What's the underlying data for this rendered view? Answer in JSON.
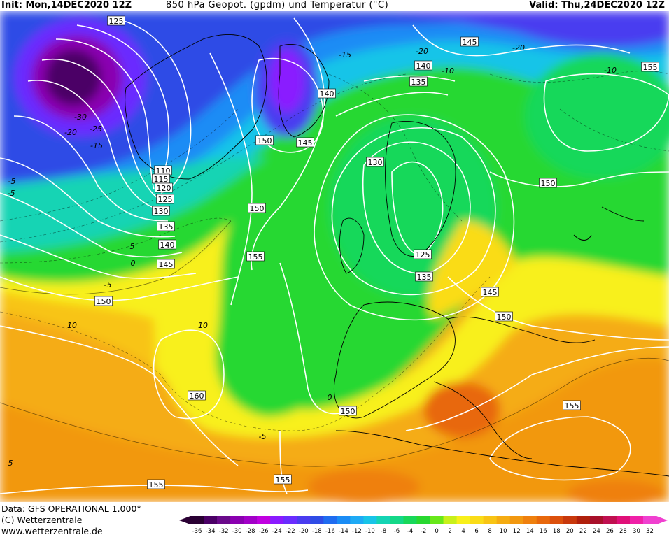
{
  "header": {
    "init": "Init: Mon,14DEC2020 12Z",
    "title": "850 hPa Geopot. (gpdm) und Temperatur (°C)",
    "valid": "Valid: Thu,24DEC2020 12Z"
  },
  "footer": {
    "line1": "Data: GFS OPERATIONAL 1.000°",
    "line2": "(C) Wetterzentrale",
    "line3": "www.wetterzentrale.de"
  },
  "geopotential_labels": [
    "125",
    "145",
    "140",
    "135",
    "140",
    "150",
    "145",
    "110",
    "115",
    "120",
    "125",
    "130",
    "135",
    "140",
    "145",
    "150",
    "150",
    "155",
    "130",
    "150",
    "125",
    "135",
    "145",
    "150",
    "155",
    "160",
    "150",
    "155",
    "155",
    "155"
  ],
  "temperature_labels": [
    "-15",
    "-20",
    "-10",
    "-30",
    "-25",
    "-20",
    "-15",
    "-5",
    "5",
    "0",
    "-5",
    "10",
    "10",
    "0",
    "-5",
    "-10",
    "-20",
    "-5",
    "5"
  ],
  "colorbar": {
    "ticks": [
      "-36",
      "-34",
      "-32",
      "-30",
      "-28",
      "-26",
      "-24",
      "-22",
      "-20",
      "-18",
      "-16",
      "-14",
      "-12",
      "-10",
      "-8",
      "-6",
      "-4",
      "-2",
      "0",
      "2",
      "4",
      "6",
      "8",
      "10",
      "12",
      "14",
      "16",
      "18",
      "20",
      "22",
      "24",
      "26",
      "28",
      "30",
      "32"
    ],
    "colors": [
      "#2a0033",
      "#4b0066",
      "#6a0a8a",
      "#8a00b0",
      "#a200c8",
      "#c000e0",
      "#8a1aff",
      "#6a2cff",
      "#4a3cf0",
      "#2f4ce6",
      "#1f6cf0",
      "#1a8cf5",
      "#1eaaf5",
      "#18c4e8",
      "#14d4b4",
      "#14d888",
      "#18d85a",
      "#28d830",
      "#68e81a",
      "#c8f01a",
      "#f8f01a",
      "#fadc18",
      "#f8c414",
      "#f5ac12",
      "#f29810",
      "#ef800e",
      "#e8680c",
      "#dc500c",
      "#c8380c",
      "#b0200c",
      "#a8102a",
      "#c01050",
      "#e01078",
      "#f020a8",
      "#f040d0"
    ]
  },
  "colors": {
    "isohypse": "#ffffff",
    "border": "#000000"
  }
}
